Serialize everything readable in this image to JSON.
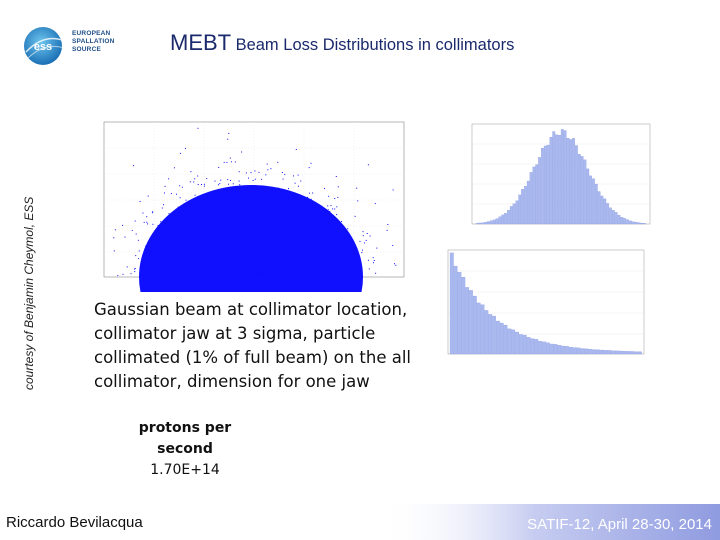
{
  "header": {
    "title_big": "MEBT",
    "title_small": "Beam Loss Distributions in collimators"
  },
  "logo": {
    "mark_text": "ess",
    "line1": "EUROPEAN",
    "line2": "SPALLATION",
    "line3": "SOURCE"
  },
  "credit": "courtesy of Benjamin Cheymol, ESS",
  "description": "Gaussian beam at collimator location, collimator jaw at 3 sigma, particle collimated (1% of full beam) on the all collimator, dimension for one jaw",
  "protons": {
    "label": "protons per second",
    "value": "1.70E+14"
  },
  "footer": {
    "author": "Riccardo Bevilacqua",
    "conference": "SATIF-12, April 28-30, 2014"
  },
  "colors": {
    "title": "#1a2a6c",
    "scatter": "#1010ff",
    "histogram": "#a9b8ee",
    "footer_bar": "#c7cdf1"
  }
}
